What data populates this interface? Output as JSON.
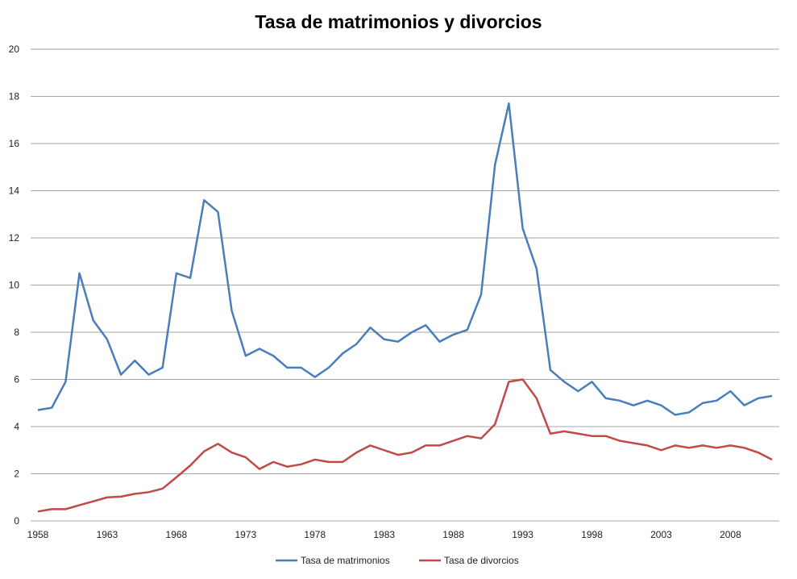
{
  "chart_data": {
    "type": "line",
    "title": "Tasa de matrimonios y divorcios",
    "xlabel": "",
    "ylabel": "",
    "x": [
      1958,
      1959,
      1960,
      1961,
      1962,
      1963,
      1964,
      1965,
      1966,
      1967,
      1968,
      1969,
      1970,
      1971,
      1972,
      1973,
      1974,
      1975,
      1976,
      1977,
      1978,
      1979,
      1980,
      1981,
      1982,
      1983,
      1984,
      1985,
      1986,
      1987,
      1988,
      1989,
      1990,
      1991,
      1992,
      1993,
      1994,
      1995,
      1996,
      1997,
      1998,
      1999,
      2000,
      2001,
      2002,
      2003,
      2004,
      2005,
      2006,
      2007,
      2008,
      2009,
      2010,
      2011
    ],
    "xticks": [
      "1958",
      "1963",
      "1968",
      "1973",
      "1978",
      "1983",
      "1988",
      "1993",
      "1998",
      "2003",
      "2008"
    ],
    "ylim": [
      0,
      20
    ],
    "yticks": [
      "0",
      "2",
      "4",
      "6",
      "8",
      "10",
      "12",
      "14",
      "16",
      "18",
      "20"
    ],
    "grid": "horizontal",
    "legend": "bottom",
    "series": [
      {
        "name": "Tasa de matrimonios",
        "color": "#4a7ebb",
        "values": [
          4.7,
          4.8,
          5.9,
          10.5,
          8.5,
          7.7,
          6.2,
          6.8,
          6.2,
          6.5,
          10.5,
          10.3,
          13.6,
          13.1,
          8.9,
          7.0,
          7.3,
          7.0,
          6.5,
          6.5,
          6.1,
          6.5,
          7.1,
          7.5,
          8.2,
          7.7,
          7.6,
          8.0,
          8.3,
          7.6,
          7.9,
          8.1,
          9.6,
          15.1,
          17.7,
          12.4,
          10.7,
          6.4,
          5.9,
          5.5,
          5.9,
          5.2,
          5.1,
          4.9,
          5.1,
          4.9,
          4.5,
          4.6,
          5.0,
          5.1,
          5.5,
          4.9,
          5.2,
          5.3
        ]
      },
      {
        "name": "Tasa de divorcios",
        "color": "#be4b48",
        "values": [
          0.4,
          0.5,
          0.5,
          0.67,
          0.83,
          1.0,
          1.03,
          1.15,
          1.22,
          1.37,
          1.85,
          2.35,
          2.95,
          3.27,
          2.9,
          2.7,
          2.2,
          2.5,
          2.3,
          2.4,
          2.6,
          2.5,
          2.5,
          2.9,
          3.2,
          3.0,
          2.8,
          2.9,
          3.2,
          3.2,
          3.4,
          3.6,
          3.5,
          4.1,
          5.9,
          6.0,
          5.2,
          3.7,
          3.8,
          3.7,
          3.6,
          3.6,
          3.4,
          3.3,
          3.2,
          3.0,
          3.2,
          3.1,
          3.2,
          3.1,
          3.2,
          3.1,
          2.9,
          2.6
        ]
      }
    ]
  }
}
